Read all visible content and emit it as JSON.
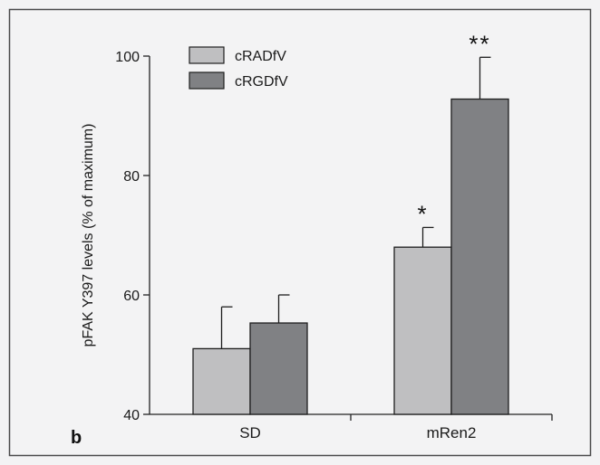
{
  "chart_data": {
    "type": "bar",
    "panel_label": "b",
    "ylabel": "pFAK Y397 levels (% of maximum)",
    "xlabel": "",
    "ylim": [
      40,
      100
    ],
    "yticks": [
      40,
      60,
      80,
      100
    ],
    "categories": [
      "SD",
      "mRen2"
    ],
    "series": [
      {
        "name": "cRADfV",
        "color": "#bfbfc1",
        "values": [
          51,
          68
        ],
        "errors": [
          7,
          3.3
        ]
      },
      {
        "name": "cRGDfV",
        "color": "#808184",
        "values": [
          55.3,
          92.8
        ],
        "errors": [
          4.7,
          7
        ]
      }
    ],
    "annotations": [
      {
        "category": "mRen2",
        "series": "cRADfV",
        "text": "*"
      },
      {
        "category": "mRen2",
        "series": "cRGDfV",
        "text": "**"
      }
    ],
    "legend_position": "top-left",
    "grid": false
  }
}
